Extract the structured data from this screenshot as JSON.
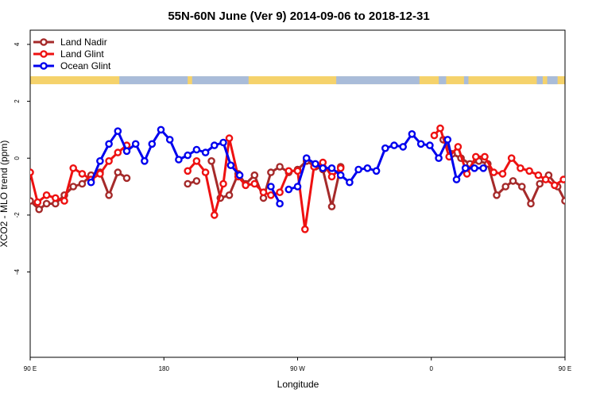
{
  "chart_data": {
    "type": "line",
    "title": "55N-60N June (Ver 9)   2014-09-06 to 2018-12-31",
    "xlabel": "Longitude",
    "ylabel": "XCO2 - MLO trend (ppm)",
    "xlim": [
      90,
      450
    ],
    "ylim": [
      -7,
      4.5
    ],
    "x_ticks": [
      {
        "value": 90,
        "label": "90 E"
      },
      {
        "value": 180,
        "label": "180"
      },
      {
        "value": 270,
        "label": "90 W"
      },
      {
        "value": 360,
        "label": "0"
      },
      {
        "value": 450,
        "label": "90 E"
      },
      {
        "value": 540,
        "label": "180"
      }
    ],
    "y_ticks": [
      -4,
      -2,
      0,
      2,
      4
    ],
    "legend": {
      "position": "top-left"
    },
    "land_ocean_band": {
      "y_range": [
        2.6,
        2.88
      ],
      "land_color": "#f5d26b",
      "ocean_color": "#a9bcd9"
    },
    "series": [
      {
        "name": "Land Nadir",
        "color": "#a52a2a",
        "segments": [
          [
            [
              90,
              -1.5
            ],
            [
              96,
              -1.8
            ],
            [
              101,
              -1.6
            ],
            [
              107,
              -1.6
            ],
            [
              113,
              -1.3
            ],
            [
              119,
              -1.0
            ],
            [
              125,
              -0.9
            ],
            [
              131,
              -0.6
            ],
            [
              137,
              -0.5
            ],
            [
              143,
              -1.3
            ],
            [
              149,
              -0.5
            ],
            [
              155,
              -0.7
            ]
          ],
          [
            [
              196,
              -0.9
            ],
            [
              202,
              -0.8
            ]
          ],
          [
            [
              212,
              -0.1
            ],
            [
              218,
              -1.4
            ],
            [
              224,
              -1.3
            ],
            [
              230,
              -0.55
            ],
            [
              235,
              -0.9
            ],
            [
              241,
              -0.6
            ],
            [
              247,
              -1.4
            ],
            [
              252,
              -0.5
            ],
            [
              258,
              -0.3
            ],
            [
              264,
              -0.5
            ],
            [
              270,
              -0.4
            ],
            [
              276,
              -0.1
            ],
            [
              282,
              -0.3
            ],
            [
              287,
              -0.4
            ],
            [
              293,
              -1.7
            ],
            [
              299,
              -0.3
            ]
          ],
          [
            [
              368,
              0.65
            ],
            [
              374,
              0.15
            ],
            [
              380,
              0.0
            ],
            [
              386,
              -0.2
            ],
            [
              392,
              -0.1
            ],
            [
              398,
              -0.2
            ],
            [
              404,
              -1.3
            ],
            [
              410,
              -1.0
            ],
            [
              415,
              -0.8
            ],
            [
              421,
              -1.0
            ],
            [
              427,
              -1.6
            ],
            [
              433,
              -0.9
            ],
            [
              439,
              -0.6
            ],
            [
              445,
              -1.0
            ],
            [
              450,
              -1.5
            ]
          ]
        ]
      },
      {
        "name": "Land Glint",
        "color": "#ee1111",
        "segments": [
          [
            [
              90,
              -0.5
            ],
            [
              95,
              -1.55
            ],
            [
              101,
              -1.3
            ],
            [
              107,
              -1.4
            ],
            [
              113,
              -1.5
            ],
            [
              119,
              -0.35
            ],
            [
              125,
              -0.55
            ],
            [
              131,
              -0.75
            ],
            [
              137,
              -0.55
            ],
            [
              143,
              -0.1
            ],
            [
              149,
              0.2
            ],
            [
              155,
              0.45
            ]
          ],
          [
            [
              196,
              -0.45
            ],
            [
              202,
              -0.1
            ],
            [
              208,
              -0.5
            ],
            [
              214,
              -2.0
            ],
            [
              220,
              -0.9
            ],
            [
              224,
              0.7
            ],
            [
              230,
              -0.65
            ],
            [
              235,
              -0.95
            ],
            [
              241,
              -0.9
            ],
            [
              247,
              -1.2
            ],
            [
              252,
              -1.3
            ],
            [
              258,
              -1.2
            ],
            [
              264,
              -0.45
            ],
            [
              270,
              -0.45
            ],
            [
              275,
              -2.5
            ],
            [
              281,
              -0.3
            ],
            [
              287,
              -0.15
            ],
            [
              293,
              -0.65
            ],
            [
              299,
              -0.35
            ]
          ],
          [
            [
              362,
              0.8
            ],
            [
              366,
              1.05
            ],
            [
              372,
              0.05
            ],
            [
              378,
              0.4
            ],
            [
              384,
              -0.55
            ],
            [
              390,
              0.05
            ],
            [
              396,
              0.05
            ],
            [
              402,
              -0.5
            ],
            [
              408,
              -0.55
            ],
            [
              414,
              0.0
            ],
            [
              420,
              -0.35
            ],
            [
              426,
              -0.45
            ],
            [
              432,
              -0.6
            ],
            [
              437,
              -0.75
            ],
            [
              443,
              -0.95
            ],
            [
              449,
              -0.75
            ],
            [
              455,
              -0.5
            ]
          ]
        ]
      },
      {
        "name": "Ocean Glint",
        "color": "#0000ee",
        "segments": [
          [
            [
              131,
              -0.85
            ],
            [
              137,
              -0.1
            ],
            [
              143,
              0.5
            ],
            [
              149,
              0.95
            ],
            [
              155,
              0.25
            ],
            [
              161,
              0.5
            ],
            [
              167,
              -0.1
            ],
            [
              172,
              0.5
            ],
            [
              178,
              1.0
            ],
            [
              184,
              0.65
            ],
            [
              190,
              -0.05
            ],
            [
              196,
              0.1
            ],
            [
              202,
              0.3
            ],
            [
              208,
              0.2
            ],
            [
              214,
              0.45
            ],
            [
              220,
              0.55
            ],
            [
              225,
              -0.25
            ],
            [
              231,
              -0.6
            ]
          ],
          [
            [
              252,
              -1.0
            ],
            [
              258,
              -1.6
            ]
          ],
          [
            [
              264,
              -1.1
            ],
            [
              270,
              -1.0
            ],
            [
              276,
              0.0
            ],
            [
              282,
              -0.2
            ],
            [
              287,
              -0.35
            ],
            [
              293,
              -0.35
            ],
            [
              299,
              -0.6
            ],
            [
              305,
              -0.85
            ],
            [
              311,
              -0.4
            ],
            [
              317,
              -0.35
            ],
            [
              323,
              -0.45
            ],
            [
              329,
              0.35
            ],
            [
              335,
              0.45
            ],
            [
              341,
              0.4
            ],
            [
              347,
              0.85
            ],
            [
              353,
              0.5
            ],
            [
              359,
              0.45
            ],
            [
              365,
              0.0
            ],
            [
              371,
              0.65
            ],
            [
              377,
              -0.75
            ],
            [
              383,
              -0.35
            ],
            [
              389,
              -0.35
            ],
            [
              395,
              -0.35
            ]
          ]
        ]
      }
    ]
  }
}
